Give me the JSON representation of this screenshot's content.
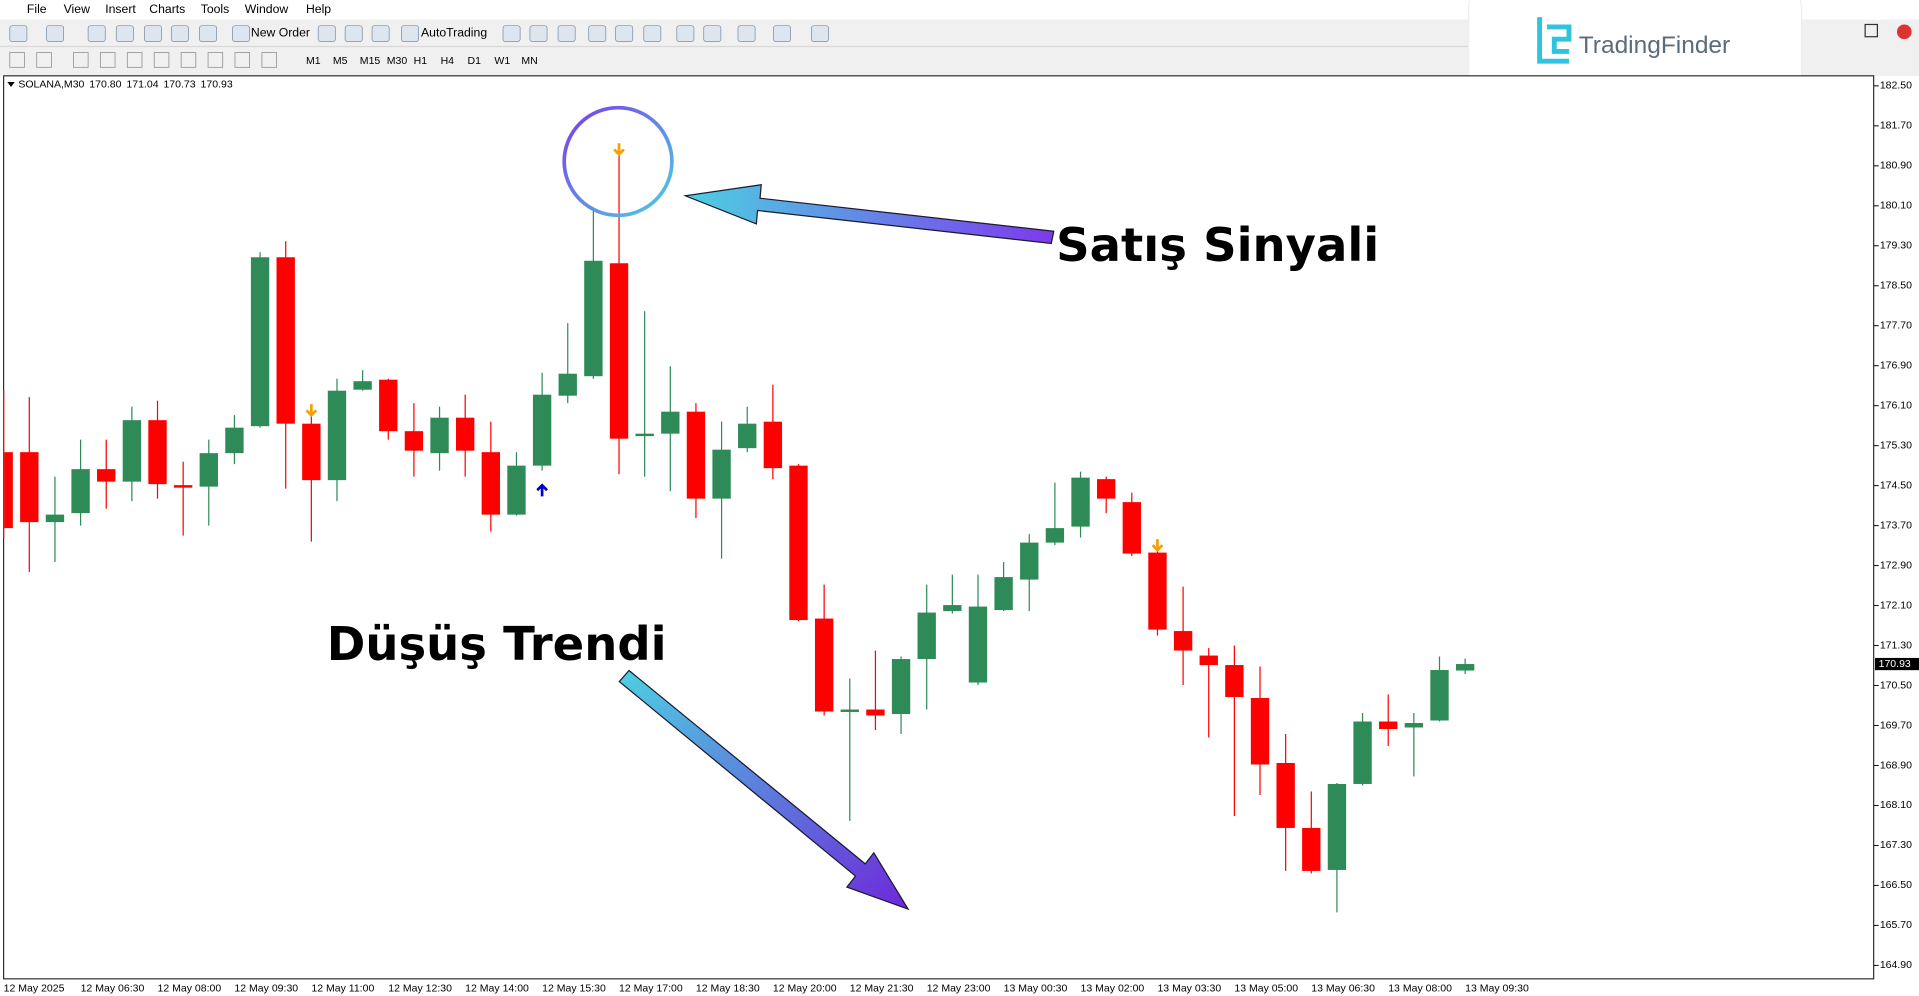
{
  "menu": [
    "File",
    "View",
    "Insert",
    "Charts",
    "Tools",
    "Window",
    "Help"
  ],
  "toolbar": {
    "new_order": "New Order",
    "auto_trading": "AutoTrading",
    "timeframes": [
      "M1",
      "M5",
      "M15",
      "M30",
      "H1",
      "H4",
      "D1",
      "W1",
      "MN"
    ]
  },
  "logo": "TradingFinder",
  "chart_data": {
    "type": "candlestick",
    "symbol": "SOLANA,M30",
    "header_values": [
      "170.80",
      "171.04",
      "170.73",
      "170.93"
    ],
    "categories": [
      "12 May 2025",
      null,
      null,
      "12 May 06:30",
      null,
      null,
      "12 May 08:00",
      null,
      null,
      "12 May 09:30",
      null,
      null,
      "12 May 11:00",
      null,
      null,
      "12 May 12:30",
      null,
      null,
      "12 May 14:00",
      null,
      null,
      "12 May 15:30",
      null,
      null,
      "12 May 17:00",
      null,
      null,
      "12 May 18:30",
      null,
      null,
      "12 May 20:00",
      null,
      null,
      "12 May 21:30",
      null,
      null,
      "12 May 23:00",
      null,
      null,
      "13 May 00:30",
      null,
      null,
      "13 May 02:00",
      null,
      null,
      "13 May 03:30",
      null,
      null,
      "13 May 05:00",
      null,
      null,
      "13 May 06:30",
      null,
      null,
      "13 May 08:00",
      null,
      null,
      "13 May 09:30"
    ],
    "open": [
      175.17,
      175.17,
      173.77,
      173.95,
      174.83,
      174.58,
      175.81,
      174.51,
      174.48,
      175.15,
      175.69,
      179.07,
      175.74,
      174.61,
      176.42,
      176.62,
      175.59,
      175.15,
      175.86,
      175.17,
      173.92,
      174.9,
      176.3,
      176.69,
      178.95,
      175.52,
      175.54,
      175.98,
      174.24,
      175.25,
      175.78,
      174.9,
      171.84,
      169.98,
      170.02,
      169.93,
      171.03,
      171.99,
      170.56,
      172.01,
      172.62,
      173.36,
      173.68,
      174.63,
      174.17,
      173.16,
      171.59,
      171.1,
      170.91,
      170.25,
      168.95,
      167.65,
      166.81,
      168.53,
      169.78,
      169.66,
      169.8,
      170.8
    ],
    "high": [
      176.4,
      176.27,
      174.68,
      175.42,
      175.42,
      176.08,
      176.2,
      174.98,
      175.42,
      175.91,
      179.17,
      179.39,
      175.91,
      176.64,
      176.81,
      176.64,
      176.15,
      176.08,
      176.32,
      175.78,
      175.17,
      176.76,
      177.75,
      180.07,
      181.13,
      177.99,
      176.89,
      176.15,
      175.78,
      176.08,
      176.52,
      174.93,
      172.52,
      170.64,
      171.2,
      171.08,
      172.52,
      172.72,
      172.72,
      172.97,
      173.53,
      174.56,
      174.78,
      174.68,
      174.36,
      173.21,
      172.48,
      171.25,
      171.3,
      170.88,
      169.53,
      168.38,
      168.55,
      169.95,
      170.32,
      169.95,
      171.08,
      171.04
    ],
    "low": [
      173.46,
      172.77,
      172.97,
      173.7,
      174.04,
      174.19,
      174.24,
      173.5,
      173.7,
      174.93,
      175.66,
      174.44,
      173.38,
      174.19,
      176.4,
      175.42,
      174.68,
      174.8,
      174.68,
      173.58,
      173.9,
      174.8,
      176.15,
      176.64,
      174.73,
      174.68,
      174.39,
      173.85,
      173.04,
      175.17,
      174.63,
      171.79,
      169.9,
      167.79,
      169.61,
      169.53,
      170.02,
      171.94,
      170.51,
      171.99,
      171.99,
      173.31,
      173.46,
      173.95,
      173.09,
      171.5,
      170.51,
      169.46,
      167.89,
      168.31,
      166.79,
      166.74,
      165.96,
      168.5,
      169.29,
      168.68,
      169.78,
      170.73
    ],
    "close": [
      173.65,
      173.77,
      173.92,
      174.83,
      174.58,
      175.81,
      174.53,
      174.46,
      175.15,
      175.66,
      179.07,
      175.74,
      174.61,
      176.4,
      176.59,
      175.59,
      175.2,
      175.86,
      175.2,
      173.92,
      174.9,
      176.32,
      176.74,
      179.0,
      175.44,
      175.54,
      175.98,
      174.24,
      175.22,
      175.74,
      174.85,
      171.81,
      169.98,
      170.02,
      169.9,
      171.03,
      171.96,
      172.11,
      172.08,
      172.67,
      173.36,
      173.65,
      174.66,
      174.24,
      173.14,
      171.62,
      171.2,
      170.91,
      170.27,
      168.92,
      167.65,
      166.79,
      168.53,
      169.78,
      169.63,
      169.75,
      170.81,
      170.93
    ],
    "up_color": "#2e8b57",
    "down_color": "#ff0000",
    "ylim": [
      164.63,
      182.7
    ],
    "yticks": [
      {
        "value": 182.5,
        "label": "182.50"
      },
      {
        "value": 181.7,
        "label": "181.70"
      },
      {
        "value": 180.9,
        "label": "180.90"
      },
      {
        "value": 180.1,
        "label": "180.10"
      },
      {
        "value": 179.3,
        "label": "179.30"
      },
      {
        "value": 178.5,
        "label": "178.50"
      },
      {
        "value": 177.7,
        "label": "177.70"
      },
      {
        "value": 176.9,
        "label": "176.90"
      },
      {
        "value": 176.1,
        "label": "176.10"
      },
      {
        "value": 175.3,
        "label": "175.30"
      },
      {
        "value": 174.5,
        "label": "174.50"
      },
      {
        "value": 173.7,
        "label": "173.70"
      },
      {
        "value": 172.9,
        "label": "172.90"
      },
      {
        "value": 172.1,
        "label": "172.10"
      },
      {
        "value": 171.3,
        "label": "171.30"
      },
      {
        "value": 170.5,
        "label": "170.50"
      },
      {
        "value": 169.7,
        "label": "169.70"
      },
      {
        "value": 168.9,
        "label": "168.90"
      },
      {
        "value": 168.1,
        "label": "168.10"
      },
      {
        "value": 167.3,
        "label": "167.30"
      },
      {
        "value": 166.5,
        "label": "166.50"
      },
      {
        "value": 165.7,
        "label": "165.70"
      },
      {
        "value": 164.9,
        "label": "164.90"
      }
    ],
    "last_price": {
      "value": 170.93,
      "label": "170.93"
    },
    "signals": [
      {
        "index": 12,
        "direction": "sell",
        "color": "#f5a000"
      },
      {
        "index": 21,
        "direction": "buy",
        "color": "#0000c8"
      },
      {
        "index": 24,
        "direction": "sell",
        "color": "#f5a000"
      },
      {
        "index": 45,
        "direction": "sell",
        "color": "#f5a000"
      }
    ],
    "annotations": [
      "Satış Sinyali",
      "Düşüş Trendi"
    ]
  }
}
